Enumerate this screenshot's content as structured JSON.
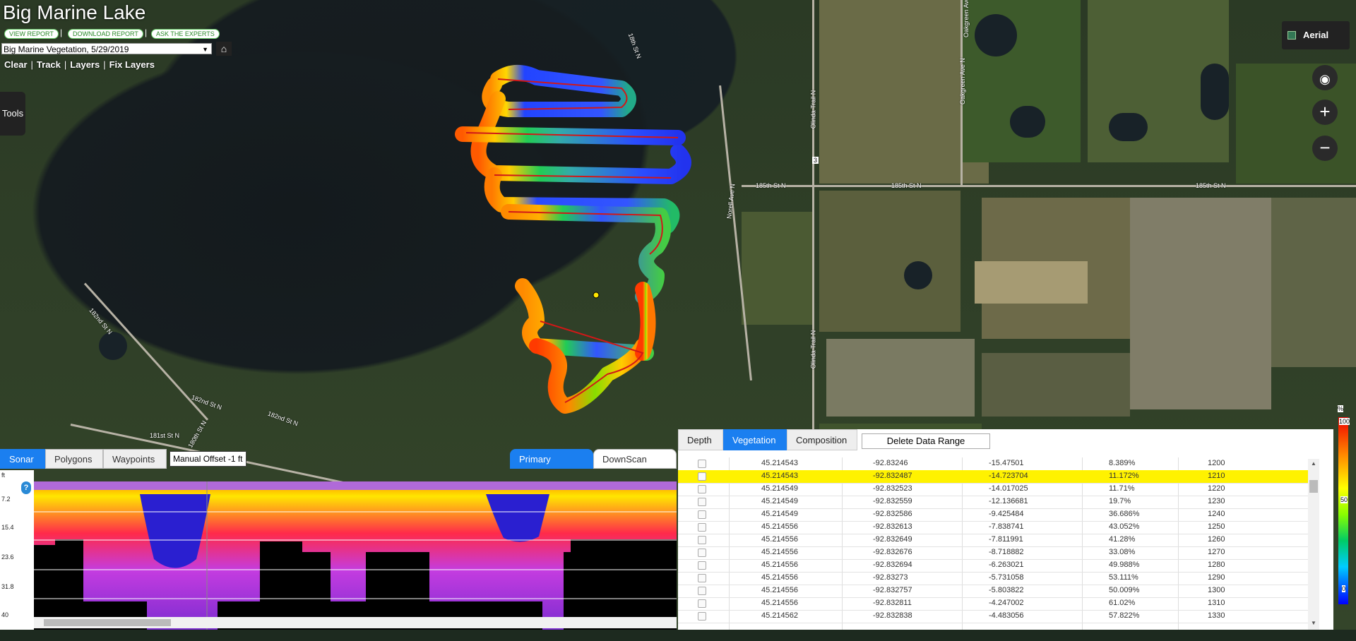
{
  "app": {
    "title": "Big Marine Lake"
  },
  "header": {
    "links": [
      "VIEW REPORT",
      "DOWNLOAD REPORT",
      "ASK THE EXPERTS"
    ],
    "survey_selected": "Big Marine Vegetation, 5/29/2019",
    "nav": [
      "Clear",
      "Track",
      "Layers",
      "Fix Layers"
    ],
    "tools_label": "Tools"
  },
  "map": {
    "basemap_label": "Aerial",
    "road_labels": [
      "185th St N",
      "185th St N",
      "185th St N",
      "182nd St N",
      "182nd St N",
      "181st St N",
      "180th St N",
      "Olinda Trail N",
      "Olinda Trail N",
      "Oakgreen Ave N",
      "Oakgreen Ave N",
      "Norell Ave N",
      "182nd St N",
      "3",
      "18th St N"
    ],
    "controls": [
      "locate-icon",
      "zoom-in-icon",
      "zoom-out-icon"
    ]
  },
  "legend": {
    "unit": "%",
    "max": "100",
    "mid": "50",
    "min": "0"
  },
  "sonar": {
    "tabs": [
      "Sonar",
      "Polygons",
      "Waypoints"
    ],
    "offset_label": "Manual Offset -1 ft",
    "view_tabs": [
      "Primary",
      "DownScan"
    ],
    "axis_unit": "ft",
    "ticks": [
      "7.2",
      "15.4",
      "23.6",
      "31.8",
      "40"
    ]
  },
  "table": {
    "tabs": [
      "Depth",
      "Vegetation",
      "Composition"
    ],
    "delete_label": "Delete Data Range",
    "rows": [
      {
        "lat": "45.214543",
        "lon": "-92.83246",
        "depth": "-15.47501",
        "pct": "8.389%",
        "id": "1200",
        "highlight": false
      },
      {
        "lat": "45.214543",
        "lon": "-92.832487",
        "depth": "-14.723704",
        "pct": "11.172%",
        "id": "1210",
        "highlight": true
      },
      {
        "lat": "45.214549",
        "lon": "-92.832523",
        "depth": "-14.017025",
        "pct": "11.71%",
        "id": "1220",
        "highlight": false
      },
      {
        "lat": "45.214549",
        "lon": "-92.832559",
        "depth": "-12.136681",
        "pct": "19.7%",
        "id": "1230",
        "highlight": false
      },
      {
        "lat": "45.214549",
        "lon": "-92.832586",
        "depth": "-9.425484",
        "pct": "36.686%",
        "id": "1240",
        "highlight": false
      },
      {
        "lat": "45.214556",
        "lon": "-92.832613",
        "depth": "-7.838741",
        "pct": "43.052%",
        "id": "1250",
        "highlight": false
      },
      {
        "lat": "45.214556",
        "lon": "-92.832649",
        "depth": "-7.811991",
        "pct": "41.28%",
        "id": "1260",
        "highlight": false
      },
      {
        "lat": "45.214556",
        "lon": "-92.832676",
        "depth": "-8.718882",
        "pct": "33.08%",
        "id": "1270",
        "highlight": false
      },
      {
        "lat": "45.214556",
        "lon": "-92.832694",
        "depth": "-6.263021",
        "pct": "49.988%",
        "id": "1280",
        "highlight": false
      },
      {
        "lat": "45.214556",
        "lon": "-92.83273",
        "depth": "-5.731058",
        "pct": "53.111%",
        "id": "1290",
        "highlight": false
      },
      {
        "lat": "45.214556",
        "lon": "-92.832757",
        "depth": "-5.803822",
        "pct": "50.009%",
        "id": "1300",
        "highlight": false
      },
      {
        "lat": "45.214556",
        "lon": "-92.832811",
        "depth": "-4.247002",
        "pct": "61.02%",
        "id": "1310",
        "highlight": false
      },
      {
        "lat": "45.214562",
        "lon": "-92.832838",
        "depth": "-4.483056",
        "pct": "57.822%",
        "id": "1330",
        "highlight": false
      }
    ]
  }
}
